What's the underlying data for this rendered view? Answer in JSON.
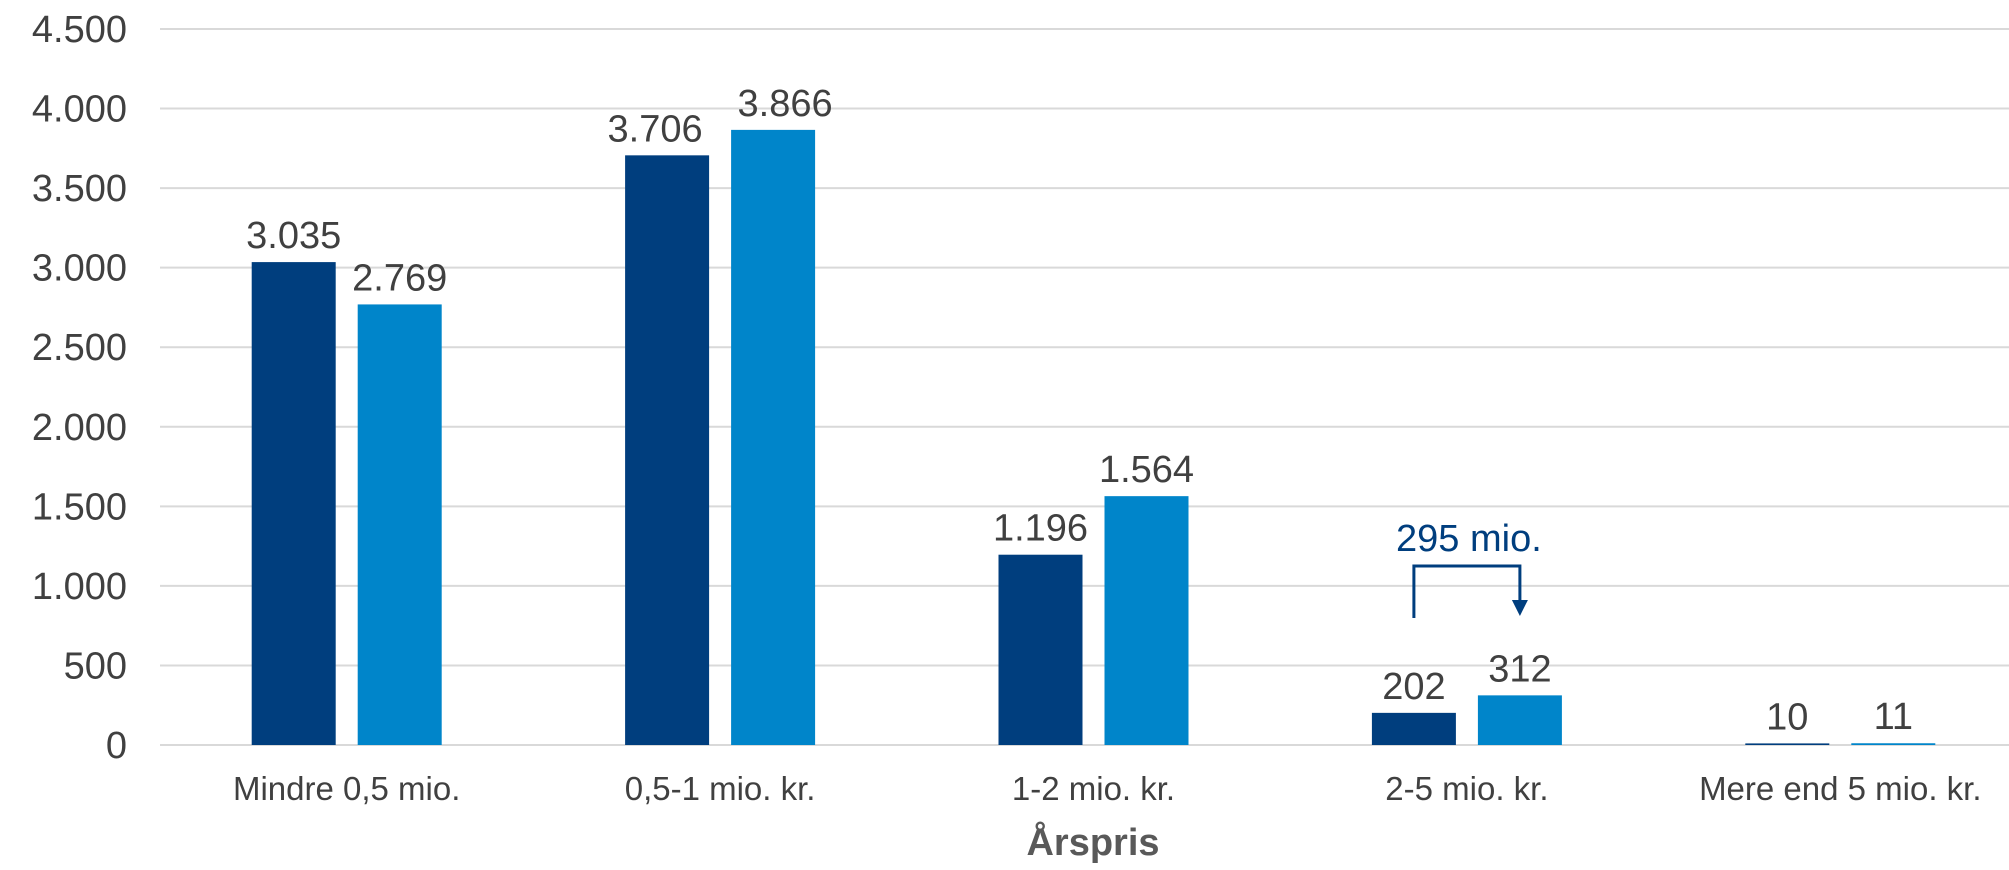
{
  "chart_data": {
    "type": "bar",
    "categories": [
      "Mindre 0,5 mio.",
      "0,5-1 mio. kr.",
      "1-2 mio. kr.",
      "2-5 mio. kr.",
      "Mere end 5 mio. kr."
    ],
    "series": [
      {
        "values": [
          3035,
          3706,
          1196,
          202,
          10
        ],
        "labels": [
          "3.035",
          "3.706",
          "1.196",
          "202",
          "10"
        ],
        "color": "#003E7E"
      },
      {
        "values": [
          2769,
          3866,
          1564,
          312,
          11
        ],
        "labels": [
          "2.769",
          "3.866",
          "1.564",
          "312",
          "11"
        ],
        "color": "#0085CA"
      }
    ],
    "xlabel": "Årspris",
    "ylabel": "",
    "ylim": [
      0,
      4500
    ],
    "yticks": [
      0,
      500,
      1000,
      1500,
      2000,
      2500,
      3000,
      3500,
      4000,
      4500
    ],
    "ytick_labels": [
      "0",
      "500",
      "1.000",
      "1.500",
      "2.000",
      "2.500",
      "3.000",
      "3.500",
      "4.000",
      "4.500"
    ],
    "grid": true,
    "legend": "none",
    "annotation": {
      "text": "295 mio.",
      "category": "2-5 mio. kr.",
      "color": "#003E7E"
    }
  },
  "colors": {
    "series_dark": "#003E7E",
    "series_light": "#0085CA",
    "gridline": "#D9D9D9",
    "text": "#404040",
    "axis_title": "#595959"
  }
}
